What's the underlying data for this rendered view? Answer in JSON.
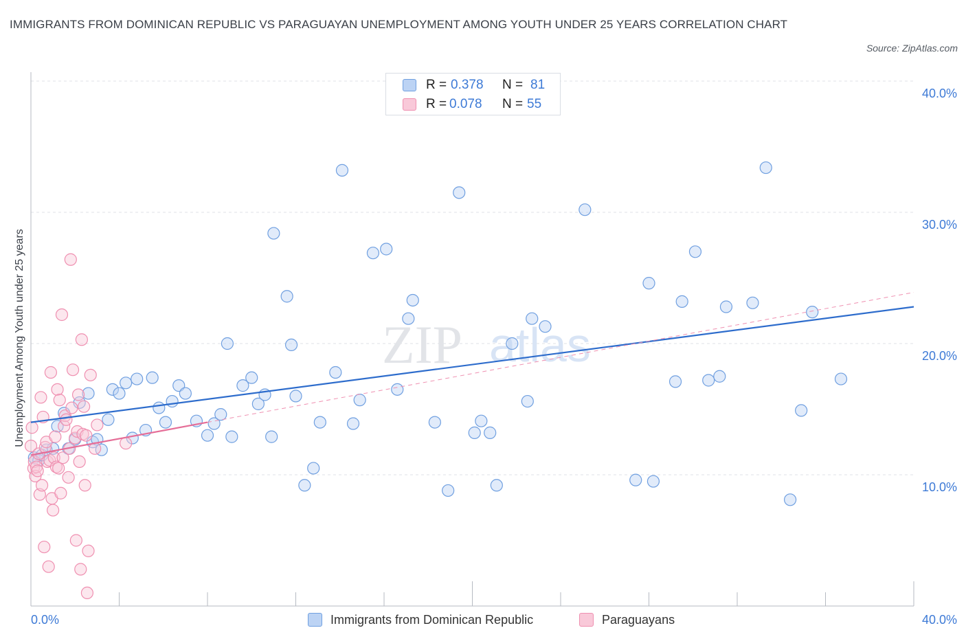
{
  "title": "IMMIGRANTS FROM DOMINICAN REPUBLIC VS PARAGUAYAN UNEMPLOYMENT AMONG YOUTH UNDER 25 YEARS CORRELATION CHART",
  "source": "Source: ZipAtlas.com",
  "watermark": {
    "part1": "ZIP",
    "part2": "atlas"
  },
  "legend": {
    "rows": [
      {
        "r_label": "R =",
        "r_value": "0.378",
        "n_label": "N =",
        "n_value": "81",
        "color": "#6f9fe0"
      },
      {
        "r_label": "R =",
        "r_value": "0.078",
        "n_label": "N =",
        "n_value": "55",
        "color": "#ef8fb0"
      }
    ]
  },
  "bottom_legend": [
    {
      "label": "Immigrants from Dominican Republic",
      "color": "#6f9fe0"
    },
    {
      "label": "Paraguayans",
      "color": "#ef8fb0"
    }
  ],
  "chart_data": {
    "type": "scatter",
    "title": "IMMIGRANTS FROM DOMINICAN REPUBLIC VS PARAGUAYAN UNEMPLOYMENT AMONG YOUTH UNDER 25 YEARS CORRELATION CHART",
    "xlabel": "",
    "ylabel": "Unemployment Among Youth under 25 years",
    "xlim": [
      0,
      40
    ],
    "ylim": [
      0,
      40
    ],
    "x_tick_labels": [
      "0.0%",
      "40.0%"
    ],
    "y_ticks": [
      10,
      20,
      30,
      40
    ],
    "y_tick_labels": [
      "10.0%",
      "20.0%",
      "30.0%",
      "40.0%"
    ],
    "grid": true,
    "series": [
      {
        "name": "Immigrants from Dominican Republic",
        "color": "#6f9fe0",
        "R": 0.378,
        "N": 81,
        "trend": {
          "x": [
            0,
            40
          ],
          "y": [
            14.0,
            22.8
          ],
          "style": "solid"
        },
        "points": [
          [
            0.15,
            11.3
          ],
          [
            0.35,
            11.1
          ],
          [
            0.5,
            11.5
          ],
          [
            0.7,
            11.9
          ],
          [
            1.0,
            12.0
          ],
          [
            1.2,
            13.7
          ],
          [
            1.5,
            14.7
          ],
          [
            1.7,
            12.0
          ],
          [
            2.0,
            12.7
          ],
          [
            2.2,
            15.5
          ],
          [
            2.6,
            16.2
          ],
          [
            2.8,
            12.5
          ],
          [
            3.0,
            12.7
          ],
          [
            3.2,
            11.9
          ],
          [
            3.5,
            14.2
          ],
          [
            3.7,
            16.5
          ],
          [
            4.0,
            16.2
          ],
          [
            4.3,
            17.0
          ],
          [
            4.6,
            12.8
          ],
          [
            4.8,
            17.3
          ],
          [
            5.2,
            13.4
          ],
          [
            5.5,
            17.4
          ],
          [
            5.8,
            15.1
          ],
          [
            6.1,
            14.0
          ],
          [
            6.4,
            15.6
          ],
          [
            6.7,
            16.8
          ],
          [
            7.0,
            16.2
          ],
          [
            7.5,
            14.1
          ],
          [
            8.0,
            13.0
          ],
          [
            8.3,
            13.9
          ],
          [
            8.6,
            14.6
          ],
          [
            8.9,
            20.0
          ],
          [
            9.1,
            12.9
          ],
          [
            9.6,
            16.8
          ],
          [
            10.0,
            17.4
          ],
          [
            10.3,
            15.4
          ],
          [
            10.6,
            16.1
          ],
          [
            10.9,
            12.9
          ],
          [
            11.0,
            28.4
          ],
          [
            11.6,
            23.6
          ],
          [
            11.8,
            19.9
          ],
          [
            12.0,
            16.0
          ],
          [
            12.4,
            9.2
          ],
          [
            12.8,
            10.5
          ],
          [
            13.1,
            14.0
          ],
          [
            13.8,
            17.8
          ],
          [
            14.1,
            33.2
          ],
          [
            14.6,
            13.9
          ],
          [
            14.9,
            15.7
          ],
          [
            15.5,
            26.9
          ],
          [
            16.1,
            27.2
          ],
          [
            16.6,
            16.5
          ],
          [
            17.1,
            21.9
          ],
          [
            17.3,
            23.3
          ],
          [
            18.3,
            14.0
          ],
          [
            18.9,
            8.8
          ],
          [
            19.4,
            31.5
          ],
          [
            20.1,
            13.2
          ],
          [
            20.4,
            14.1
          ],
          [
            20.8,
            13.2
          ],
          [
            21.1,
            9.2
          ],
          [
            21.8,
            20.0
          ],
          [
            22.5,
            15.6
          ],
          [
            22.7,
            21.9
          ],
          [
            23.3,
            21.3
          ],
          [
            25.1,
            30.2
          ],
          [
            27.4,
            9.6
          ],
          [
            28.0,
            24.6
          ],
          [
            28.2,
            9.5
          ],
          [
            29.5,
            23.2
          ],
          [
            29.2,
            17.1
          ],
          [
            30.1,
            27.0
          ],
          [
            30.7,
            17.2
          ],
          [
            31.2,
            17.5
          ],
          [
            31.5,
            22.8
          ],
          [
            32.7,
            23.1
          ],
          [
            33.3,
            33.4
          ],
          [
            34.4,
            8.1
          ],
          [
            34.9,
            14.9
          ],
          [
            35.4,
            22.4
          ],
          [
            36.7,
            17.3
          ]
        ]
      },
      {
        "name": "Paraguayans",
        "color": "#ef8fb0",
        "R": 0.078,
        "N": 55,
        "trend": {
          "x": [
            0,
            8
          ],
          "y": [
            11.5,
            14.0
          ],
          "style": "solid",
          "dashed_extension": {
            "x": [
              8,
              40
            ],
            "y": [
              14.0,
              23.9
            ]
          }
        },
        "points": [
          [
            0.0,
            12.2
          ],
          [
            0.05,
            13.6
          ],
          [
            0.12,
            10.5
          ],
          [
            0.15,
            11.0
          ],
          [
            0.2,
            9.9
          ],
          [
            0.25,
            10.6
          ],
          [
            0.3,
            10.3
          ],
          [
            0.35,
            11.6
          ],
          [
            0.4,
            8.5
          ],
          [
            0.45,
            15.9
          ],
          [
            0.5,
            9.2
          ],
          [
            0.55,
            14.4
          ],
          [
            0.6,
            4.5
          ],
          [
            0.65,
            12.1
          ],
          [
            0.7,
            12.5
          ],
          [
            0.75,
            11.0
          ],
          [
            0.8,
            3.0
          ],
          [
            0.85,
            11.1
          ],
          [
            0.9,
            17.8
          ],
          [
            0.95,
            8.2
          ],
          [
            1.0,
            7.3
          ],
          [
            1.05,
            11.3
          ],
          [
            1.1,
            12.9
          ],
          [
            1.15,
            10.6
          ],
          [
            1.2,
            16.5
          ],
          [
            1.25,
            10.5
          ],
          [
            1.3,
            15.7
          ],
          [
            1.35,
            8.6
          ],
          [
            1.4,
            22.2
          ],
          [
            1.45,
            11.3
          ],
          [
            1.5,
            13.7
          ],
          [
            1.55,
            14.5
          ],
          [
            1.6,
            14.2
          ],
          [
            1.7,
            9.8
          ],
          [
            1.75,
            12.0
          ],
          [
            1.8,
            26.4
          ],
          [
            1.85,
            15.1
          ],
          [
            1.9,
            18.0
          ],
          [
            2.0,
            12.8
          ],
          [
            2.05,
            5.0
          ],
          [
            2.1,
            13.3
          ],
          [
            2.15,
            16.1
          ],
          [
            2.2,
            11.0
          ],
          [
            2.25,
            2.8
          ],
          [
            2.3,
            20.3
          ],
          [
            2.35,
            13.1
          ],
          [
            2.4,
            15.2
          ],
          [
            2.45,
            9.2
          ],
          [
            2.5,
            13.0
          ],
          [
            2.55,
            1.0
          ],
          [
            2.6,
            4.2
          ],
          [
            2.7,
            17.6
          ],
          [
            2.9,
            12.0
          ],
          [
            3.0,
            13.8
          ],
          [
            4.3,
            12.4
          ]
        ]
      }
    ]
  }
}
